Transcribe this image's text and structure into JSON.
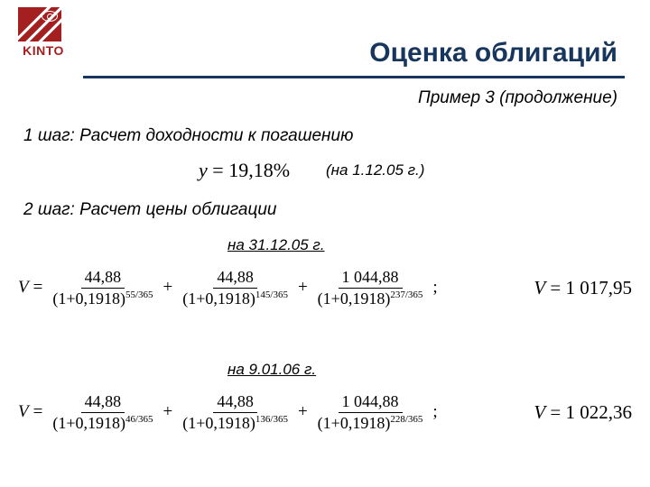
{
  "logo": {
    "text": "KINTO"
  },
  "title": "Оценка облигаций",
  "subtitle": "Пример 3 (продолжение)",
  "step1": "1 шаг: Расчет доходности к погашению",
  "yield": {
    "lhs": "y",
    "value": "19,18%",
    "date_note": "(на 1.12.05 г.)"
  },
  "step2": "2 шаг: Расчет цены облигации",
  "calc1": {
    "date_label": "на 31.12.05 г.",
    "terms": [
      {
        "numerator": "44,88",
        "base": "(1+0,1918)",
        "exp": "55/365"
      },
      {
        "numerator": "44,88",
        "base": "(1+0,1918)",
        "exp": "145/365"
      },
      {
        "numerator": "1 044,88",
        "base": "(1+0,1918)",
        "exp": "237/365"
      }
    ],
    "result": "1 017,95"
  },
  "calc2": {
    "date_label": "на 9.01.06 г.",
    "terms": [
      {
        "numerator": "44,88",
        "base": "(1+0,1918)",
        "exp": "46/365"
      },
      {
        "numerator": "44,88",
        "base": "(1+0,1918)",
        "exp": "136/365"
      },
      {
        "numerator": "1 044,88",
        "base": "(1+0,1918)",
        "exp": "228/365"
      }
    ],
    "result": "1 022,36"
  },
  "colors": {
    "heading": "#17365d",
    "brand": "#a41f1f",
    "text": "#000000",
    "bg": "#ffffff"
  }
}
